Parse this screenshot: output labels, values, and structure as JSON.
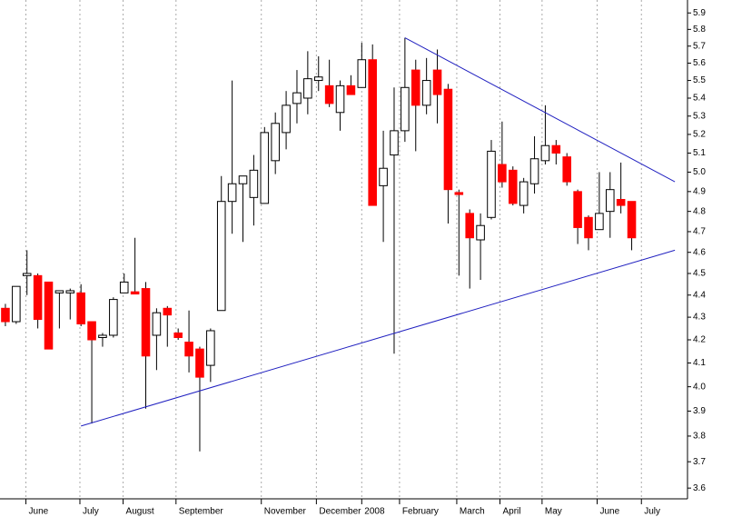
{
  "chart_data": {
    "type": "candlestick",
    "log_scale": true,
    "up_color": "#ffffff",
    "down_color": "#ff0000",
    "edge_color": "#000000",
    "grid": true,
    "x": [
      0,
      1,
      2,
      3,
      4,
      5,
      6,
      7,
      8,
      9,
      10,
      11,
      12,
      13,
      14,
      15,
      16,
      17,
      18,
      19,
      20,
      21,
      22,
      23,
      24,
      25,
      26,
      27,
      28,
      29,
      30,
      31,
      32,
      33,
      34,
      35,
      36,
      37,
      38,
      39,
      40,
      41,
      42,
      43,
      44,
      45,
      46,
      47,
      48,
      49,
      50,
      51,
      52,
      53,
      54,
      55,
      56,
      57,
      58
    ],
    "open": [
      4.34,
      4.28,
      4.49,
      4.49,
      4.46,
      4.41,
      4.41,
      4.41,
      4.28,
      4.21,
      4.22,
      4.41,
      4.415,
      4.43,
      4.22,
      4.34,
      4.23,
      4.19,
      4.16,
      4.09,
      4.33,
      4.85,
      4.94,
      4.87,
      4.84,
      5.06,
      5.21,
      5.37,
      5.4,
      5.5,
      5.47,
      5.32,
      5.47,
      5.46,
      5.62,
      4.93,
      5.09,
      5.22,
      5.56,
      5.36,
      5.56,
      5.45,
      4.895,
      4.79,
      4.66,
      4.77,
      5.04,
      5.01,
      4.83,
      4.94,
      5.06,
      5.14,
      5.08,
      4.9,
      4.77,
      4.71,
      4.8,
      4.86,
      4.85
    ],
    "high": [
      4.36,
      4.44,
      4.61,
      4.5,
      4.46,
      4.42,
      4.43,
      4.45,
      4.28,
      4.23,
      4.39,
      4.5,
      4.67,
      4.46,
      4.34,
      4.35,
      4.25,
      4.33,
      4.17,
      4.25,
      4.98,
      5.5,
      4.98,
      5.09,
      5.24,
      5.32,
      5.44,
      5.56,
      5.67,
      5.64,
      5.62,
      5.5,
      5.53,
      5.72,
      5.71,
      5.22,
      5.46,
      5.75,
      5.62,
      5.63,
      5.68,
      5.48,
      4.91,
      4.81,
      4.79,
      5.17,
      5.27,
      5.03,
      4.97,
      5.19,
      5.36,
      5.17,
      5.1,
      4.91,
      4.78,
      5.0,
      5.0,
      5.05,
      4.85
    ],
    "low": [
      4.26,
      4.27,
      4.4,
      4.25,
      4.16,
      4.25,
      4.29,
      4.26,
      3.85,
      4.17,
      4.21,
      4.41,
      4.41,
      3.91,
      4.07,
      4.17,
      4.2,
      4.06,
      3.74,
      4.02,
      4.33,
      4.69,
      4.65,
      4.73,
      4.84,
      4.99,
      5.12,
      5.26,
      5.31,
      5.44,
      5.35,
      5.22,
      5.42,
      5.46,
      4.83,
      4.65,
      4.14,
      5.16,
      5.11,
      5.31,
      5.26,
      4.74,
      4.49,
      4.43,
      4.47,
      4.76,
      4.92,
      4.83,
      4.79,
      4.89,
      5.04,
      5.04,
      4.93,
      4.64,
      4.61,
      4.71,
      4.67,
      4.79,
      4.61
    ],
    "close": [
      4.28,
      4.44,
      4.5,
      4.29,
      4.16,
      4.42,
      4.42,
      4.27,
      4.2,
      4.22,
      4.38,
      4.46,
      4.405,
      4.13,
      4.32,
      4.31,
      4.21,
      4.13,
      4.04,
      4.24,
      4.85,
      4.94,
      4.98,
      5.01,
      5.21,
      5.26,
      5.36,
      5.43,
      5.51,
      5.52,
      5.37,
      5.47,
      5.42,
      5.62,
      4.83,
      5.02,
      5.22,
      5.46,
      5.36,
      5.5,
      5.42,
      4.91,
      4.885,
      4.67,
      4.73,
      5.11,
      4.95,
      4.84,
      4.95,
      5.07,
      5.14,
      5.1,
      4.95,
      4.72,
      4.67,
      4.79,
      4.91,
      4.83,
      4.67
    ],
    "xlim": [
      -0.5,
      63
    ],
    "xticks": [
      {
        "value": 1.9,
        "label": "June"
      },
      {
        "value": 6.9,
        "label": "July"
      },
      {
        "value": 10.9,
        "label": "August"
      },
      {
        "value": 15.8,
        "label": "September"
      },
      {
        "value": 23.7,
        "label": "November"
      },
      {
        "value": 28.8,
        "label": "December"
      },
      {
        "value": 33.0,
        "label": "2008"
      },
      {
        "value": 36.5,
        "label": "February"
      },
      {
        "value": 41.8,
        "label": "March"
      },
      {
        "value": 45.8,
        "label": "April"
      },
      {
        "value": 49.7,
        "label": "May"
      },
      {
        "value": 54.8,
        "label": "June"
      },
      {
        "value": 58.9,
        "label": "July"
      }
    ],
    "ylim": [
      3.56,
      5.98
    ],
    "yticks": [
      3.6,
      3.7,
      3.8,
      3.9,
      {
        "value": 4.0,
        "label": "4.0"
      },
      4.1,
      4.2,
      4.3,
      4.4,
      4.5,
      4.6,
      4.7,
      4.8,
      4.9,
      {
        "value": 5.0,
        "label": "5.0"
      },
      5.1,
      5.2,
      5.3,
      5.4,
      5.5,
      5.6,
      5.7,
      5.8,
      5.9
    ],
    "trendlines": [
      {
        "color": "#2020c0",
        "x": [
          7,
          62
        ],
        "y": [
          3.84,
          4.61
        ]
      },
      {
        "color": "#2020c0",
        "x": [
          37,
          62
        ],
        "y": [
          5.75,
          4.95
        ]
      }
    ]
  }
}
